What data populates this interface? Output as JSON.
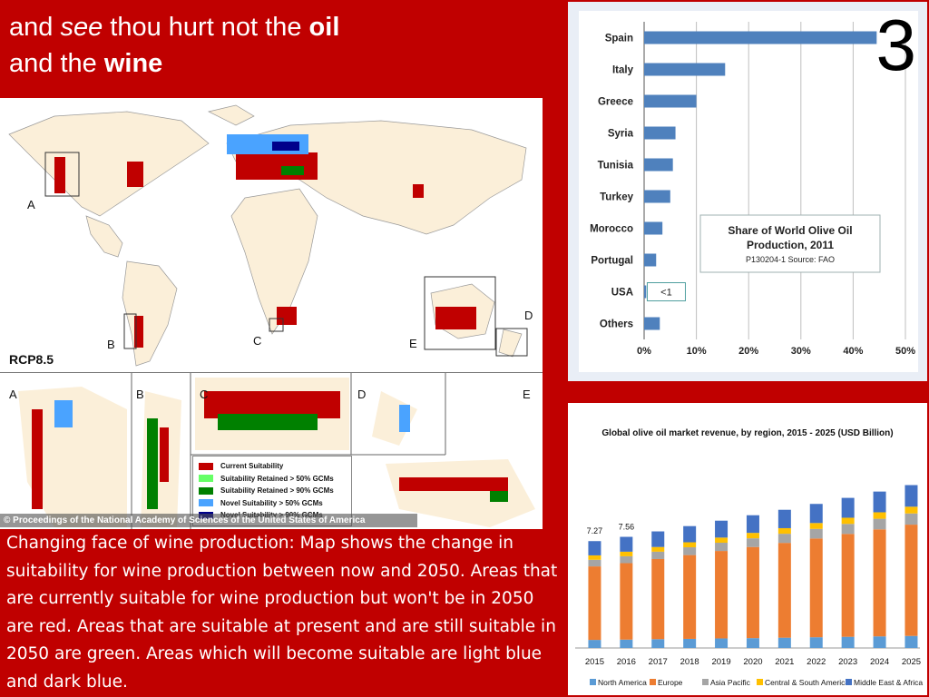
{
  "title": {
    "part1": "and ",
    "part2": "see",
    "part3": " thou hurt not the ",
    "part4": "oil",
    "part5": "and the ",
    "part6": "wine"
  },
  "slide_number": "3",
  "map": {
    "scenario": "RCP8.5",
    "region_labels": [
      "A",
      "B",
      "C",
      "D",
      "E"
    ],
    "legend": [
      {
        "label": "Current Suitability",
        "color": "#c00000"
      },
      {
        "label": "Suitability Retained > 50% GCMs",
        "color": "#66ff66"
      },
      {
        "label": "Suitability Retained > 90% GCMs",
        "color": "#008000"
      },
      {
        "label": "Novel Suitability > 50% GCMs",
        "color": "#4aa3ff"
      },
      {
        "label": "Novel Suitability > 90% GCMs",
        "color": "#00008b"
      }
    ],
    "credit": "© Proceedings of the National Academy of Sciences of the United States of America"
  },
  "caption": "Changing face of wine production: Map shows the change in suitability for wine production between now and 2050. Areas that are currently suitable for wine production but won't be in 2050 are red. Areas that are suitable at present and are still suitable in 2050 are green. Areas which will become suitable are light blue and dark blue.",
  "chart_data": [
    {
      "type": "bar",
      "orientation": "horizontal",
      "categories": [
        "Spain",
        "Italy",
        "Greece",
        "Syria",
        "Tunisia",
        "Turkey",
        "Morocco",
        "Portugal",
        "USA",
        "Others"
      ],
      "values": [
        44.5,
        15.5,
        10,
        6,
        5.5,
        5,
        3.5,
        2.3,
        0.4,
        3
      ],
      "xlim": [
        0,
        50
      ],
      "x_ticks": [
        "0%",
        "10%",
        "20%",
        "30%",
        "40%",
        "50%"
      ],
      "title": "Share of World Olive Oil Production, 2011",
      "source_note": "P130204-1 Source: FAO",
      "annotation": "<1",
      "bar_color": "#4f81bd",
      "grid": true
    },
    {
      "type": "bar",
      "stacked": true,
      "title": "Global olive oil market revenue, by region, 2015 - 2025 (USD Billion)",
      "categories": [
        "2015",
        "2016",
        "2017",
        "2018",
        "2019",
        "2020",
        "2021",
        "2022",
        "2023",
        "2024",
        "2025"
      ],
      "totals_labels": [
        "7.27",
        "7.56"
      ],
      "series": [
        {
          "name": "North America",
          "color": "#5b9bd5",
          "values": [
            0.55,
            0.57,
            0.6,
            0.62,
            0.65,
            0.67,
            0.7,
            0.73,
            0.76,
            0.79,
            0.82
          ]
        },
        {
          "name": "Europe",
          "color": "#ed7d31",
          "values": [
            5.0,
            5.2,
            5.45,
            5.7,
            5.95,
            6.2,
            6.45,
            6.72,
            7.0,
            7.28,
            7.57
          ]
        },
        {
          "name": "Asia Pacific",
          "color": "#a5a5a5",
          "values": [
            0.45,
            0.47,
            0.5,
            0.53,
            0.56,
            0.59,
            0.62,
            0.65,
            0.68,
            0.72,
            0.76
          ]
        },
        {
          "name": "Central & South America",
          "color": "#ffc000",
          "values": [
            0.3,
            0.31,
            0.32,
            0.34,
            0.35,
            0.37,
            0.38,
            0.4,
            0.42,
            0.44,
            0.46
          ]
        },
        {
          "name": "Middle East & Africa",
          "color": "#4472c4",
          "values": [
            0.97,
            1.01,
            1.06,
            1.1,
            1.15,
            1.2,
            1.25,
            1.3,
            1.35,
            1.41,
            1.47
          ]
        }
      ],
      "legend_position": "bottom"
    }
  ]
}
